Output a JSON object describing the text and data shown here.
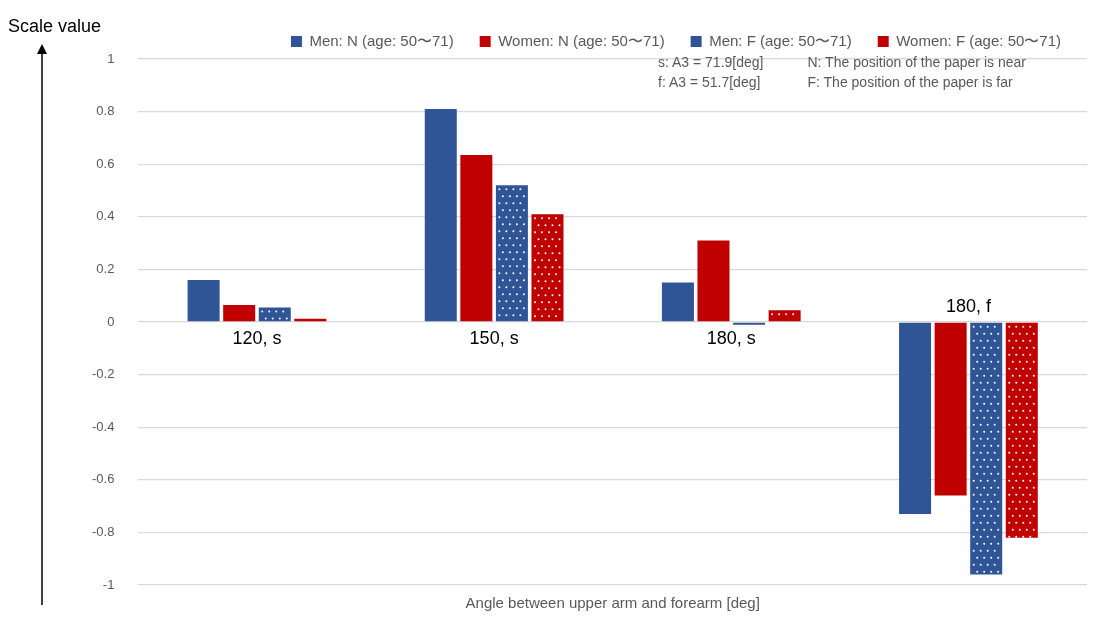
{
  "chart_data": {
    "type": "bar",
    "categories": [
      "120, s",
      "150, s",
      "180, s",
      "180, f"
    ],
    "series": [
      {
        "name": "Men: N (age: 50〜71)",
        "color": "#2f5597",
        "values": [
          0.16,
          0.81,
          0.15,
          -0.73
        ]
      },
      {
        "name": "Women: N (age: 50〜71)",
        "color": "#c00000",
        "values": [
          0.065,
          0.635,
          0.31,
          -0.66
        ]
      },
      {
        "name": "Men: F (age: 50〜71)",
        "color": "#2f5597",
        "values": [
          0.055,
          0.52,
          -0.01,
          -0.96
        ],
        "line_style": "dotted"
      },
      {
        "name": "Women: F (age: 50〜71)",
        "color": "#c00000",
        "values": [
          0.012,
          0.41,
          0.045,
          -0.82
        ],
        "line_style": "dotted"
      }
    ],
    "xlabel": "Angle between upper arm and forearm [deg]",
    "ylabel": "Scale value",
    "ylim": [
      -1,
      1
    ],
    "yticks": [
      -1,
      -0.8,
      -0.6,
      -0.4,
      -0.2,
      0,
      0.2,
      0.4,
      0.6,
      0.8,
      1
    ],
    "grid": "y",
    "legend": "top",
    "annotations": [
      "s: A3 = 71.9[deg]",
      "N: The position of the paper is near",
      "f: A3 = 51.7[deg]",
      "F: The position of the paper is far"
    ]
  }
}
